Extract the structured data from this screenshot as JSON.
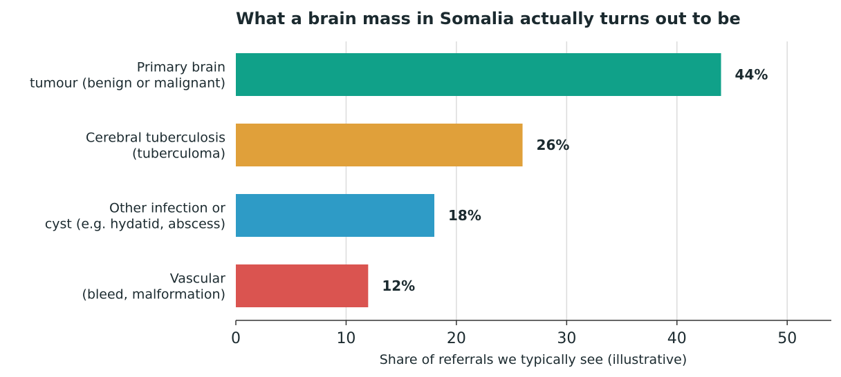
{
  "chart_data": {
    "type": "bar",
    "orientation": "horizontal",
    "title": "What a brain mass in Somalia actually turns out to be",
    "xlabel": "Share of referrals we typically see (illustrative)",
    "ylabel": "",
    "xlim": [
      0,
      54
    ],
    "xticks": [
      0,
      10,
      20,
      30,
      40,
      50
    ],
    "grid": "vertical",
    "categories": [
      [
        "Primary brain",
        "tumour (benign or malignant)"
      ],
      [
        "Cerebral tuberculosis",
        "(tuberculoma)"
      ],
      [
        "Other infection or",
        "cyst (e.g. hydatid, abscess)"
      ],
      [
        "Vascular",
        "(bleed, malformation)"
      ]
    ],
    "values": [
      44,
      26,
      18,
      12
    ],
    "value_labels": [
      "44%",
      "26%",
      "18%",
      "12%"
    ],
    "colors": [
      "#10a189",
      "#e0a03a",
      "#2e9bc6",
      "#da5450"
    ]
  }
}
